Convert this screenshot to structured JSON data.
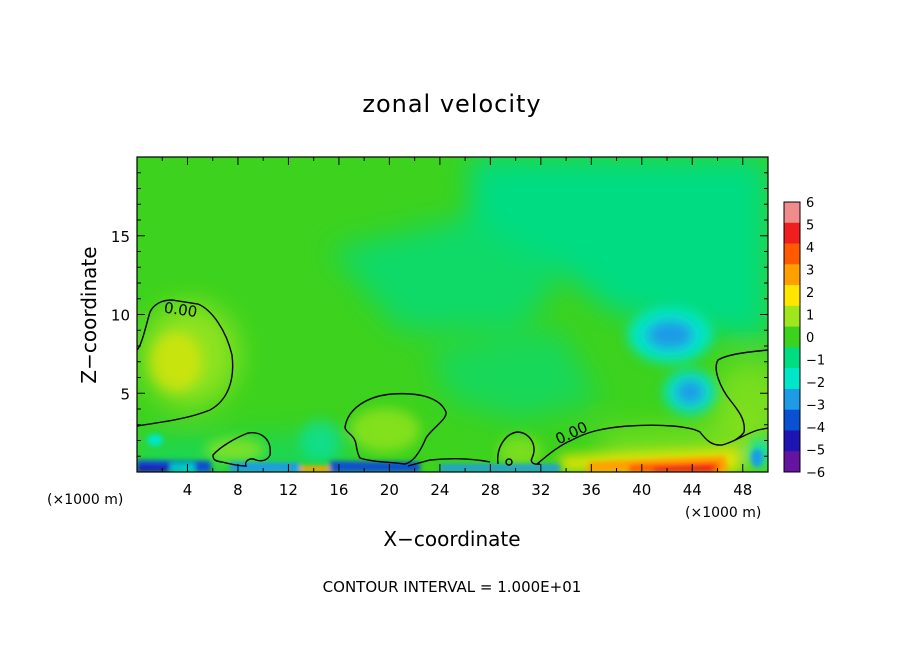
{
  "chart_data": {
    "type": "heatmap",
    "title": "zonal velocity",
    "xlabel": "X−coordinate",
    "ylabel": "Z−coordinate",
    "x_unit_left": "(×1000 m)",
    "x_unit_right": "(×1000 m)",
    "xlim": [
      0,
      50
    ],
    "ylim": [
      0,
      20
    ],
    "x_ticks": [
      4,
      8,
      12,
      16,
      20,
      24,
      28,
      32,
      36,
      40,
      44,
      48
    ],
    "x_tick_labels": [
      "4",
      "8",
      "12",
      "16",
      "20",
      "24",
      "28",
      "32",
      "36",
      "40",
      "44",
      "48"
    ],
    "y_ticks": [
      5,
      10,
      15
    ],
    "y_tick_labels": [
      "5",
      "10",
      "15"
    ],
    "colorbar": {
      "levels": [
        6,
        5,
        4,
        3,
        2,
        1,
        0,
        -1,
        -2,
        -3,
        -4,
        -5,
        -6
      ],
      "labels": [
        "6",
        "5",
        "4",
        "3",
        "2",
        "1",
        "0",
        "−1",
        "−2",
        "−3",
        "−4",
        "−5",
        "−6"
      ],
      "colors": [
        "#f08c8c",
        "#f01e1e",
        "#ff5a00",
        "#ffa000",
        "#ffe600",
        "#a0e61e",
        "#3cd21e",
        "#00dc82",
        "#00e6c8",
        "#1e9be6",
        "#0a50d2",
        "#1e14b4",
        "#6414a0"
      ]
    },
    "contour_labels": [
      {
        "text": "0.00",
        "x": 3.4,
        "y": 10.3
      },
      {
        "text": "0.00",
        "x": 34.6,
        "y": 2.5
      }
    ],
    "contour_interval_text": "CONTOUR INTERVAL = 1.000E+01"
  }
}
